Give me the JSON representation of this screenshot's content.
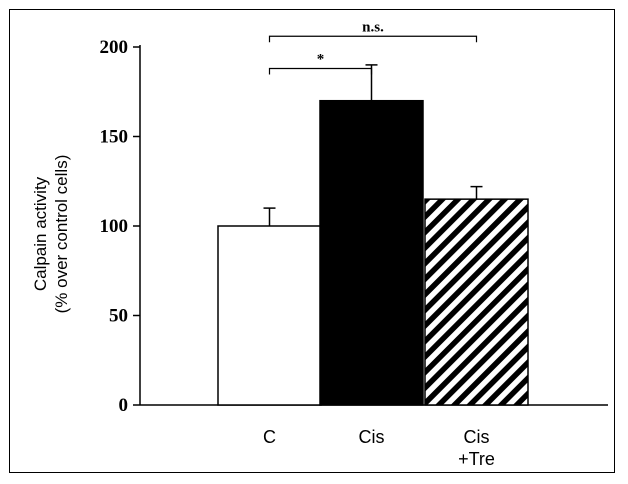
{
  "chart_data": {
    "type": "bar",
    "title": "",
    "xlabel": "",
    "ylabel_line1": "Calpain activity",
    "ylabel_line2": "(% over control cells)",
    "categories": [
      "C",
      "Cis",
      "Cis +Tre"
    ],
    "category_lines": [
      [
        "C"
      ],
      [
        "Cis"
      ],
      [
        "Cis",
        "+Tre"
      ]
    ],
    "values": [
      100,
      170,
      115
    ],
    "errors": [
      10,
      20,
      7
    ],
    "bar_fills": [
      "white",
      "black",
      "hatched"
    ],
    "ylim": [
      0,
      200
    ],
    "yticks": [
      0,
      50,
      100,
      150,
      200
    ],
    "grid": false,
    "annotations": [
      {
        "text": "*",
        "from": "C",
        "to": "Cis"
      },
      {
        "text": "n.s.",
        "from": "C",
        "to": "Cis +Tre"
      }
    ]
  }
}
